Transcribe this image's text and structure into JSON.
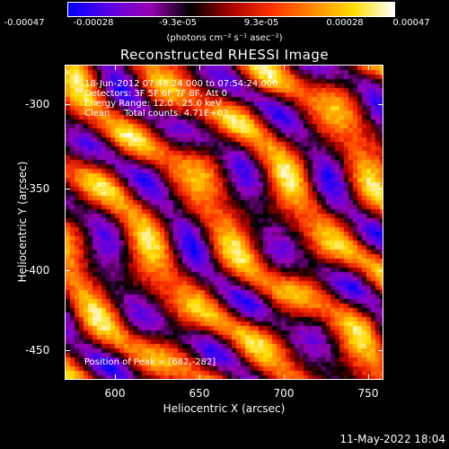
{
  "colorbar": {
    "ticks": [
      "-0.00047",
      "-0.00028",
      "-9.3e-05",
      "9.3e-05",
      "0.00028",
      "0.00047"
    ],
    "units": "(photons cm⁻² s⁻¹ asec⁻²)",
    "colors": [
      "#0000ff",
      "#5b00e6",
      "#9900b3",
      "#000000",
      "#aa0000",
      "#ff3300",
      "#ff8800",
      "#ffdd00",
      "#ffffff"
    ]
  },
  "plot": {
    "title": "Reconstructed RHESSI Image",
    "info_lines": [
      "18-Jun-2012 07:48:24.000 to 07:54:24.000",
      "Detectors: 3F 5F 6F 7F 8F, Att 0",
      "Energy Range: 12.0 - 25.0 keV",
      "Clean     Total counts: 4.71E+03"
    ],
    "peak_text": "Position of Peak = [682,-282]",
    "xlabel": "Heliocentric X (arcsec)",
    "ylabel": "Heliocentric Y (arcsec)",
    "xticks": [
      "600",
      "650",
      "700",
      "750"
    ],
    "yticks": [
      "-300",
      "-350",
      "-400",
      "-450"
    ]
  },
  "footer": {
    "timestamp": "11-May-2022 18:04"
  },
  "chart_data": {
    "type": "heatmap",
    "title": "Reconstructed RHESSI Image",
    "xlabel": "Heliocentric X (arcsec)",
    "ylabel": "Heliocentric Y (arcsec)",
    "xlim": [
      570,
      760
    ],
    "ylim": [
      -470,
      -280
    ],
    "x_ticks": [
      600,
      650,
      700,
      750
    ],
    "y_ticks": [
      -300,
      -350,
      -400,
      -450
    ],
    "value_range": [
      -0.00047,
      0.00047
    ],
    "peak": [
      682,
      -282
    ]
  }
}
